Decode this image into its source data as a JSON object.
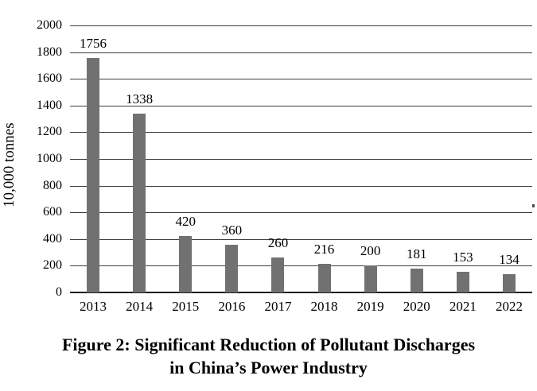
{
  "chart_data": {
    "type": "bar",
    "categories": [
      "2013",
      "2014",
      "2015",
      "2016",
      "2017",
      "2018",
      "2019",
      "2020",
      "2021",
      "2022"
    ],
    "values": [
      1756,
      1338,
      420,
      360,
      260,
      216,
      200,
      181,
      153,
      134
    ],
    "ylabel": "10,000 tonnes",
    "xlabel": "",
    "ylim": [
      0,
      2000
    ],
    "yticks": [
      0,
      200,
      400,
      600,
      800,
      1000,
      1200,
      1400,
      1600,
      1800,
      2000
    ],
    "grid": true,
    "legend": "none",
    "value_labels_shown": true,
    "title_lines": [
      "Figure 2: Significant Reduction of Pollutant Discharges",
      "in China’s Power Industry"
    ],
    "title": "Figure 2: Significant Reduction of Pollutant Discharges in China’s Power Industry"
  },
  "colors": {
    "bar": "#717171",
    "grid_line": "#3d3d3d",
    "axis_line": "#1c1c1c",
    "text": "#000000",
    "background": "#ffffff"
  }
}
